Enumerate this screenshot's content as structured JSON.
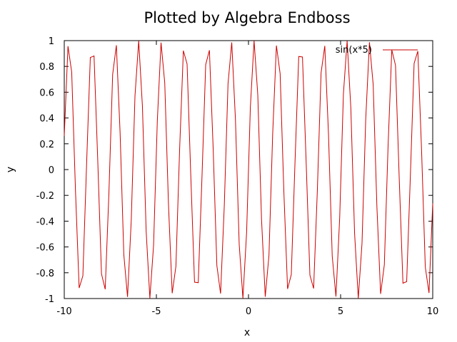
{
  "chart_data": {
    "type": "line",
    "title": "Plotted by Algebra Endboss",
    "xlabel": "x",
    "ylabel": "y",
    "xlim": [
      -10,
      10
    ],
    "ylim": [
      -1,
      1
    ],
    "grid": false,
    "legend_position": "top-right",
    "x_ticks": [
      "-10",
      "-5",
      "0",
      "5",
      "10"
    ],
    "y_ticks": [
      "1",
      "0.8",
      "0.6",
      "0.4",
      "0.2",
      "0",
      "-0.2",
      "-0.4",
      "-0.6",
      "-0.8",
      "-1"
    ],
    "series": [
      {
        "name": "sin(x*5)",
        "color": "#cc0000",
        "function": "sin(x*5)",
        "x_start": -10,
        "x_end": 10,
        "samples": 100
      }
    ]
  }
}
